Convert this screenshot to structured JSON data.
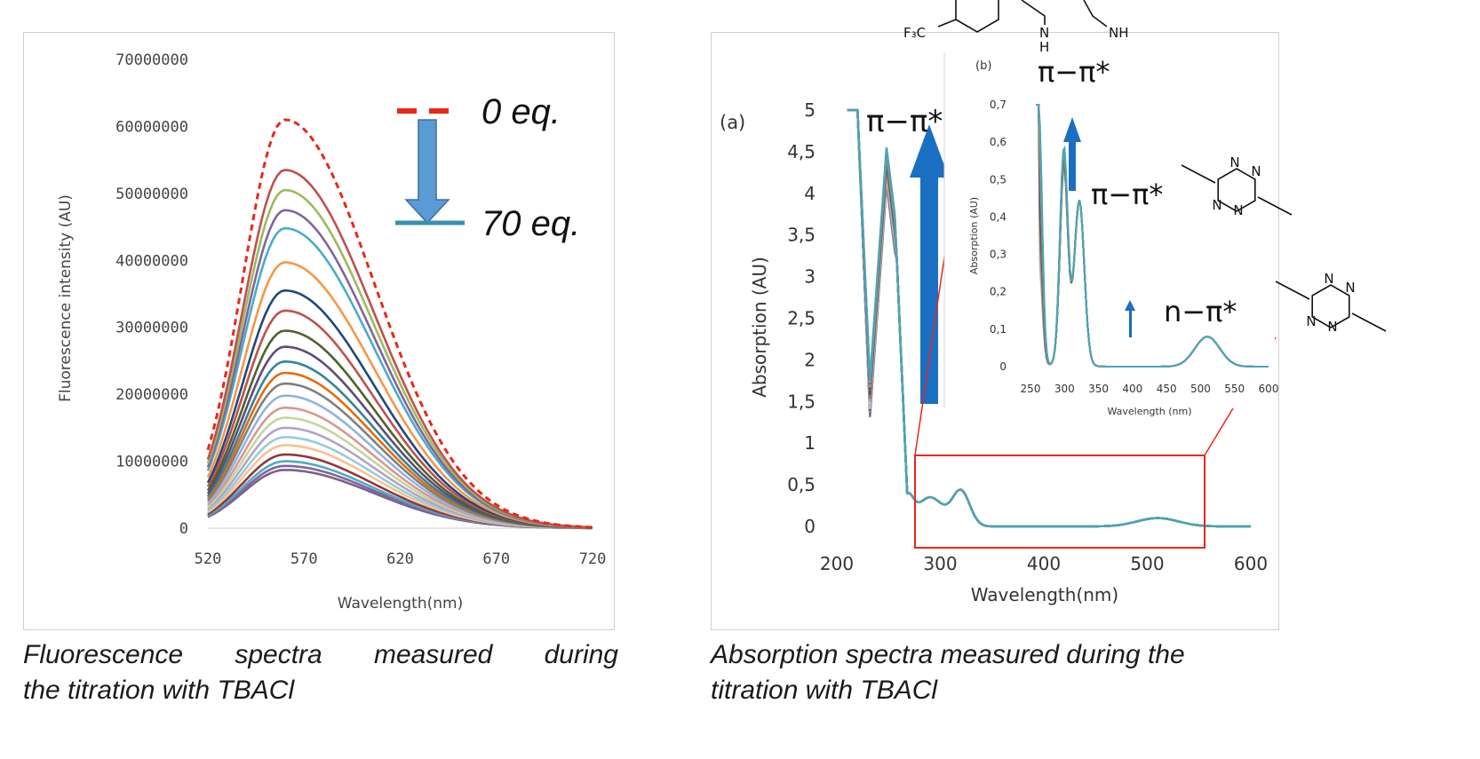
{
  "colors": {
    "zero_eq": "#e8281c",
    "titration_arrow": "#5b9bd5",
    "abs_arrow": "#1a6fc2",
    "zoom_box": "#e8281c",
    "final_curve": "#4aa3b8"
  },
  "captions": {
    "left_line1": "Fluorescence spectra measured during",
    "left_line2": "the titration with TBACl",
    "right_line1": "Absorption spectra measured during the",
    "right_line2": "titration with TBACl"
  },
  "chart_data": [
    {
      "type": "line",
      "xlabel": "Wavelength(nm)",
      "ylabel": "Fluorescence intensity (AU)",
      "xlim": [
        520,
        720
      ],
      "ylim": [
        0,
        70000000
      ],
      "x_ticks": [
        "520",
        "570",
        "620",
        "670",
        "720"
      ],
      "y_ticks": [
        "0",
        "10000000",
        "20000000",
        "30000000",
        "40000000",
        "50000000",
        "60000000",
        "70000000"
      ],
      "peak_wavelength": 560,
      "series_peaks": [
        61000000,
        53500000,
        50500000,
        47500000,
        44800000,
        39700000,
        35500000,
        32500000,
        29500000,
        27100000,
        24900000,
        23200000,
        21600000,
        19800000,
        18000000,
        16500000,
        15000000,
        13600000,
        12400000,
        11000000,
        10000000,
        9300000,
        8700000
      ],
      "legend": {
        "start": "0 eq.",
        "end": "70 eq."
      },
      "grid": false
    },
    {
      "type": "line",
      "panel_label": "(a)",
      "xlabel": "Wavelength(nm)",
      "ylabel": "Absorption (AU)",
      "xlim": [
        200,
        600
      ],
      "ylim": [
        0,
        5
      ],
      "x_ticks": [
        "200",
        "300",
        "400",
        "500",
        "600"
      ],
      "y_ticks": [
        "0",
        "0,5",
        "1",
        "1,5",
        "2",
        "2,5",
        "3",
        "3,5",
        "4",
        "4,5",
        "5"
      ],
      "annotations": [
        "π−π*",
        "π−π*",
        "π−π*",
        "n−π*"
      ],
      "main_peak_range": [
        4.65,
        4.2
      ],
      "inset": {
        "panel_label": "(b)",
        "xlabel": "Wavelength (nm)",
        "ylabel": "Absorption (AU)",
        "xlim": [
          250,
          600
        ],
        "ylim": [
          0,
          0.7
        ],
        "x_ticks": [
          "250",
          "300",
          "350",
          "400",
          "450",
          "500",
          "550",
          "600"
        ],
        "y_ticks": [
          "0",
          "0,1",
          "0,2",
          "0,3",
          "0,4",
          "0,5",
          "0,6",
          "0,7"
        ]
      },
      "structure_labels": {
        "cf3": "F₃C",
        "nh1": "N",
        "h": "H",
        "nh2": "NH",
        "n": "N"
      }
    }
  ]
}
